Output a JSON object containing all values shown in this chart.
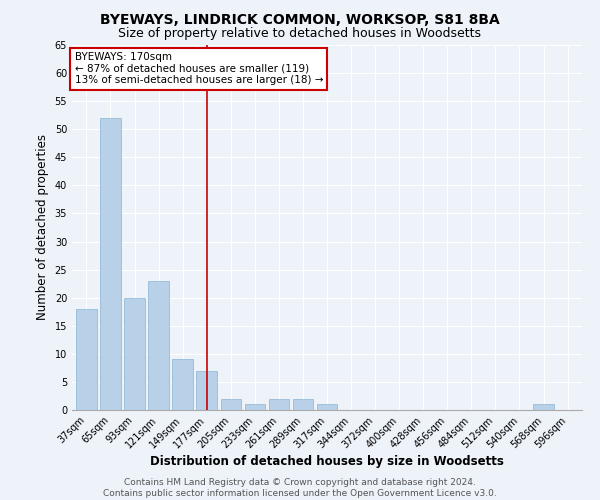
{
  "title": "BYEWAYS, LINDRICK COMMON, WORKSOP, S81 8BA",
  "subtitle": "Size of property relative to detached houses in Woodsetts",
  "xlabel": "Distribution of detached houses by size in Woodsetts",
  "ylabel": "Number of detached properties",
  "categories": [
    "37sqm",
    "65sqm",
    "93sqm",
    "121sqm",
    "149sqm",
    "177sqm",
    "205sqm",
    "233sqm",
    "261sqm",
    "289sqm",
    "317sqm",
    "344sqm",
    "372sqm",
    "400sqm",
    "428sqm",
    "456sqm",
    "484sqm",
    "512sqm",
    "540sqm",
    "568sqm",
    "596sqm"
  ],
  "values": [
    18,
    52,
    20,
    23,
    9,
    7,
    2,
    1,
    2,
    2,
    1,
    0,
    0,
    0,
    0,
    0,
    0,
    0,
    0,
    1,
    0
  ],
  "bar_color": "#b8d0e8",
  "bar_edge_color": "#8ab4d4",
  "vline_x_index": 5,
  "vline_color": "#cc0000",
  "annotation_title": "BYEWAYS: 170sqm",
  "annotation_line1": "← 87% of detached houses are smaller (119)",
  "annotation_line2": "13% of semi-detached houses are larger (18) →",
  "annotation_box_color": "#cc0000",
  "ylim": [
    0,
    65
  ],
  "yticks": [
    0,
    5,
    10,
    15,
    20,
    25,
    30,
    35,
    40,
    45,
    50,
    55,
    60,
    65
  ],
  "footer1": "Contains HM Land Registry data © Crown copyright and database right 2024.",
  "footer2": "Contains public sector information licensed under the Open Government Licence v3.0.",
  "bg_color": "#eef2f9",
  "grid_color": "#ffffff",
  "title_fontsize": 10,
  "subtitle_fontsize": 9,
  "axis_label_fontsize": 8.5,
  "tick_fontsize": 7,
  "footer_fontsize": 6.5,
  "ann_fontsize": 7.5
}
